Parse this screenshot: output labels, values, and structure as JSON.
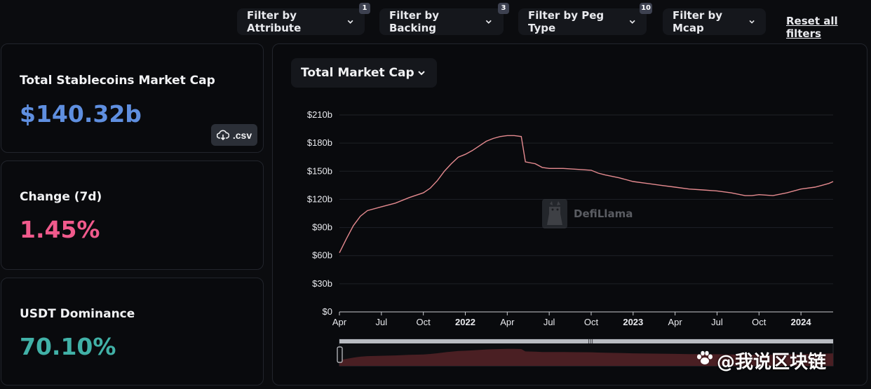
{
  "filters": [
    {
      "label": "Filter by Attribute",
      "badge": "1"
    },
    {
      "label": "Filter by Backing",
      "badge": "3"
    },
    {
      "label": "Filter by Peg Type",
      "badge": "10"
    },
    {
      "label": "Filter by Mcap",
      "badge": ""
    }
  ],
  "reset_label": "Reset all filters",
  "cards": [
    {
      "title": "Total Stablecoins Market Cap",
      "value": "$140.32b",
      "color": "#5f8fe0"
    },
    {
      "title": "Change (7d)",
      "value": "1.45%",
      "color": "#f05a8c"
    },
    {
      "title": "USDT Dominance",
      "value": "70.10%",
      "color": "#41b1a7"
    }
  ],
  "csv_label": ".csv",
  "metric_select": "Total Market Cap",
  "watermark": "DefiLlama",
  "overlay_text": "@我说区块链",
  "colors": {
    "line": "#e58a8f",
    "brush_fill": "#4a1f23"
  },
  "chart_data": {
    "type": "line",
    "title": "",
    "xlabel": "",
    "ylabel": "",
    "ylim": [
      0,
      210
    ],
    "y_ticks": [
      "$210b",
      "$180b",
      "$150b",
      "$120b",
      "$90b",
      "$60b",
      "$30b",
      "$0"
    ],
    "y_tick_values": [
      210,
      180,
      150,
      120,
      90,
      60,
      30,
      0
    ],
    "x_ticks": [
      {
        "label": "Apr",
        "month": 0,
        "bold": false
      },
      {
        "label": "Jul",
        "month": 3,
        "bold": false
      },
      {
        "label": "Oct",
        "month": 6,
        "bold": false
      },
      {
        "label": "2022",
        "month": 9,
        "bold": true
      },
      {
        "label": "Apr",
        "month": 12,
        "bold": false
      },
      {
        "label": "Jul",
        "month": 15,
        "bold": false
      },
      {
        "label": "Oct",
        "month": 18,
        "bold": false
      },
      {
        "label": "2023",
        "month": 21,
        "bold": true
      },
      {
        "label": "Apr",
        "month": 24,
        "bold": false
      },
      {
        "label": "Jul",
        "month": 27,
        "bold": false
      },
      {
        "label": "Oct",
        "month": 30,
        "bold": false
      },
      {
        "label": "2024",
        "month": 33,
        "bold": true
      }
    ],
    "series": [
      {
        "points": [
          [
            0,
            63
          ],
          [
            0.5,
            78
          ],
          [
            1,
            92
          ],
          [
            1.5,
            102
          ],
          [
            2,
            108
          ],
          [
            3,
            112
          ],
          [
            4,
            116
          ],
          [
            5,
            122
          ],
          [
            6,
            127
          ],
          [
            6.5,
            132
          ],
          [
            7,
            140
          ],
          [
            7.5,
            150
          ],
          [
            8,
            158
          ],
          [
            8.5,
            165
          ],
          [
            9,
            168
          ],
          [
            9.5,
            172
          ],
          [
            10,
            177
          ],
          [
            10.5,
            182
          ],
          [
            11,
            185
          ],
          [
            11.5,
            187
          ],
          [
            12,
            188
          ],
          [
            12.5,
            188
          ],
          [
            13,
            187
          ],
          [
            13.3,
            160
          ],
          [
            14,
            158
          ],
          [
            14.5,
            154
          ],
          [
            15,
            153
          ],
          [
            16,
            153
          ],
          [
            17,
            152
          ],
          [
            18,
            151
          ],
          [
            18.5,
            148
          ],
          [
            19,
            146
          ],
          [
            20,
            143
          ],
          [
            21,
            139
          ],
          [
            22,
            137
          ],
          [
            23,
            135
          ],
          [
            24,
            133
          ],
          [
            25,
            131
          ],
          [
            26,
            130
          ],
          [
            27,
            129
          ],
          [
            28,
            127
          ],
          [
            29,
            124
          ],
          [
            29.5,
            124
          ],
          [
            30,
            125
          ],
          [
            31,
            124
          ],
          [
            32,
            127
          ],
          [
            33,
            131
          ],
          [
            34,
            133
          ],
          [
            34.5,
            135
          ],
          [
            35,
            137
          ],
          [
            35.3,
            139
          ]
        ]
      }
    ]
  }
}
